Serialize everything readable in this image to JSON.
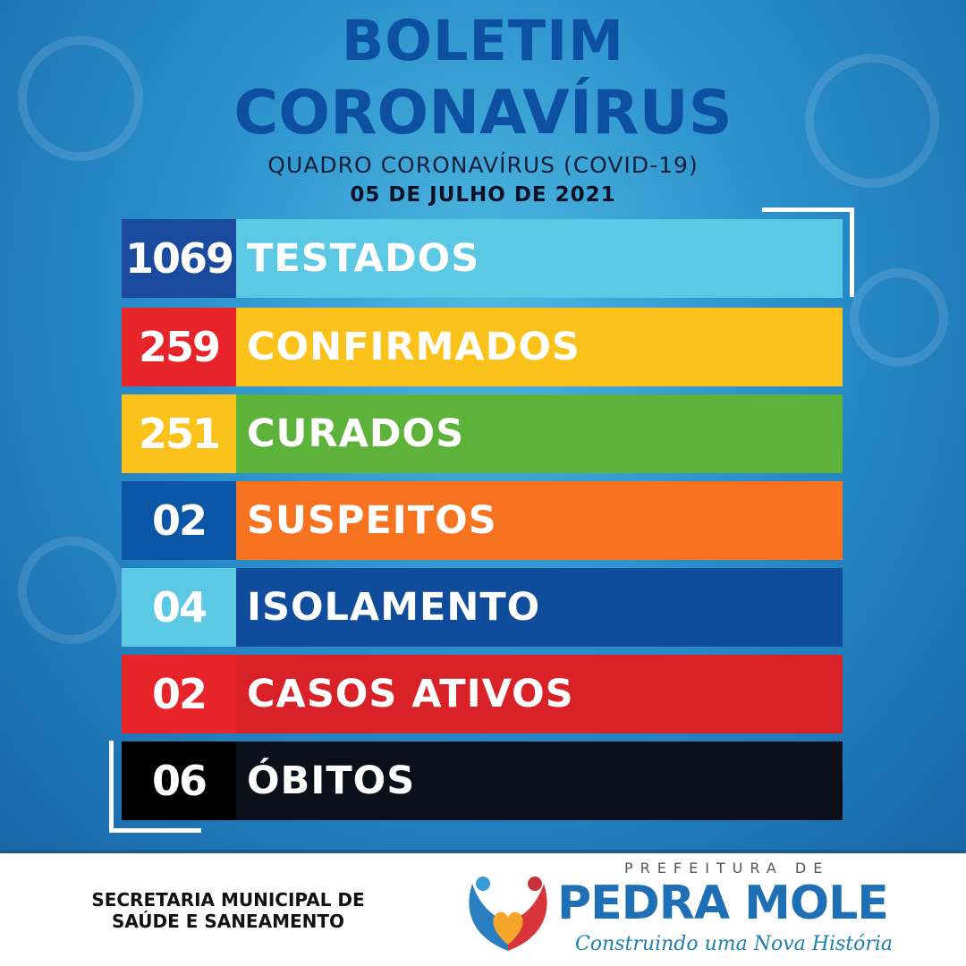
{
  "header": {
    "title_line1": "BOLETIM",
    "title_line2": "CORONAVÍRUS",
    "subtitle": "QUADRO CORONAVÍRUS (COVID-19)",
    "date": "05 DE JULHO DE 2021"
  },
  "rows": [
    {
      "value": "1069",
      "label": "TESTADOS",
      "num_color": "#1a4a9e",
      "bar_color": "#5bc8e4"
    },
    {
      "value": "259",
      "label": "CONFIRMADOS",
      "num_color": "#e8242b",
      "bar_color": "#fbc21b"
    },
    {
      "value": "251",
      "label": "CURADOS",
      "num_color": "#fbc21b",
      "bar_color": "#5db33a"
    },
    {
      "value": "02",
      "label": "SUSPEITOS",
      "num_color": "#0b56a6",
      "bar_color": "#f7731f"
    },
    {
      "value": "04",
      "label": "ISOLAMENTO",
      "num_color": "#5bc8e4",
      "bar_color": "#0f4c9c"
    },
    {
      "value": "02",
      "label": "CASOS ATIVOS",
      "num_color": "#e8242b",
      "bar_color": "#d92128"
    },
    {
      "value": "06",
      "label": "ÓBITOS",
      "num_color": "#000000",
      "bar_color": "#0a0f1a"
    }
  ],
  "footer": {
    "secretaria_line1": "SECRETARIA MUNICIPAL DE",
    "secretaria_line2": "SAÚDE E SANEAMENTO",
    "logo": {
      "prefix": "PREFEITURA DE",
      "name": "PEDRA MOLE",
      "slogan": "Construindo uma Nova História"
    }
  }
}
